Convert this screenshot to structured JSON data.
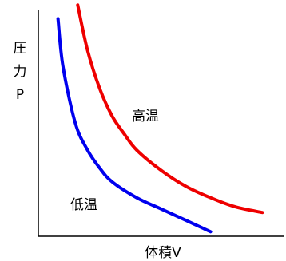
{
  "chart_data": {
    "type": "line",
    "xlabel": "体積V",
    "ylabel_lines": [
      "圧",
      "力",
      "P"
    ],
    "grid": false,
    "legend": "none",
    "xlim": [
      0,
      10
    ],
    "ylim": [
      0,
      10
    ],
    "series": [
      {
        "name": "高温",
        "color": "#ee0000",
        "x": [
          1.6,
          2.0,
          2.5,
          3.0,
          3.5,
          4.0,
          5.0,
          6.0,
          7.0,
          8.0,
          9.1
        ],
        "y": [
          10.2,
          8.2,
          6.5,
          5.3,
          4.5,
          3.8,
          2.9,
          2.2,
          1.7,
          1.3,
          1.05
        ]
      },
      {
        "name": "低温",
        "color": "#0000ee",
        "x": [
          0.8,
          1.0,
          1.5,
          2.0,
          2.5,
          3.0,
          4.0,
          5.0,
          6.0,
          7.0
        ],
        "y": [
          9.6,
          7.5,
          5.0,
          3.8,
          3.0,
          2.4,
          1.7,
          1.2,
          0.7,
          0.2
        ]
      }
    ]
  }
}
